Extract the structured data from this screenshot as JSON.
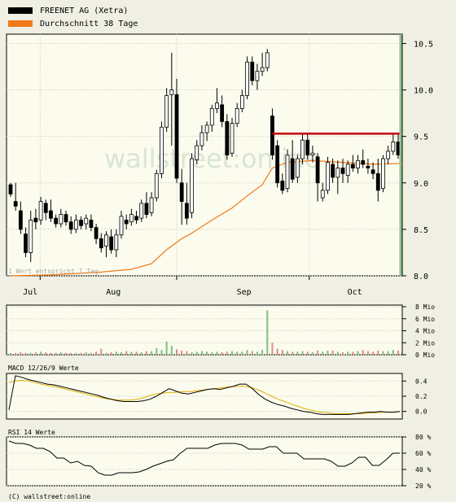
{
  "legend": [
    {
      "label": "FREENET AG (Xetra)",
      "color": "#000000"
    },
    {
      "label": "Durchschnitt 38 Tage",
      "color": "#f07a1a"
    }
  ],
  "watermark": "wallstreet:online",
  "note": "1 Wert entspricht 1 Tag.",
  "copyright": "(C) wallstreet:online",
  "panels": {
    "volume_ticks": [
      "8 Mio",
      "6 Mio",
      "4 Mio",
      "2 Mio",
      "0 Mio"
    ],
    "macd_title": "MACD 12/26/9 Werte",
    "macd_ticks": [
      "0.4",
      "0.2",
      "0.0"
    ],
    "rsi_title": "RSI 14 Werte",
    "rsi_ticks": [
      "80 %",
      "60 %",
      "40 %",
      "20 %"
    ]
  },
  "chart_data": [
    {
      "type": "candlestick",
      "title": "FREENET AG (Xetra)",
      "x_ticks": [
        "Jul",
        "Aug",
        "Sep",
        "Oct"
      ],
      "y_ticks": [
        "10.5",
        "10.0",
        "9.5",
        "9.0",
        "8.5",
        "8.0"
      ],
      "ylim": [
        8.0,
        10.6
      ],
      "grid": true,
      "legend_position": "top-left",
      "candles": [
        [
          8.98,
          9.0,
          8.88,
          8.85
        ],
        [
          8.8,
          9.0,
          8.75,
          8.7
        ],
        [
          8.7,
          8.8,
          8.5,
          8.45
        ],
        [
          8.45,
          8.52,
          8.25,
          8.2
        ],
        [
          8.25,
          8.7,
          8.6,
          8.15
        ],
        [
          8.62,
          8.72,
          8.58,
          8.5
        ],
        [
          8.6,
          8.85,
          8.8,
          8.55
        ],
        [
          8.78,
          8.82,
          8.68,
          8.6
        ],
        [
          8.7,
          8.82,
          8.62,
          8.58
        ],
        [
          8.62,
          8.66,
          8.56,
          8.52
        ],
        [
          8.56,
          8.72,
          8.66,
          8.52
        ],
        [
          8.66,
          8.7,
          8.58,
          8.54
        ],
        [
          8.58,
          8.64,
          8.5,
          8.45
        ],
        [
          8.5,
          8.66,
          8.6,
          8.46
        ],
        [
          8.6,
          8.64,
          8.54,
          8.5
        ],
        [
          8.56,
          8.66,
          8.62,
          8.5
        ],
        [
          8.6,
          8.66,
          8.52,
          8.48
        ],
        [
          8.52,
          8.56,
          8.4,
          8.34
        ],
        [
          8.4,
          8.46,
          8.3,
          8.25
        ],
        [
          8.32,
          8.48,
          8.44,
          8.2
        ],
        [
          8.42,
          8.5,
          8.28,
          8.24
        ],
        [
          8.28,
          8.5,
          8.44,
          8.2
        ],
        [
          8.44,
          8.7,
          8.64,
          8.4
        ],
        [
          8.6,
          8.66,
          8.56,
          8.5
        ],
        [
          8.58,
          8.72,
          8.66,
          8.54
        ],
        [
          8.64,
          8.7,
          8.6,
          8.56
        ],
        [
          8.62,
          8.82,
          8.78,
          8.58
        ],
        [
          8.78,
          8.9,
          8.66,
          8.62
        ],
        [
          8.68,
          8.9,
          8.84,
          8.64
        ],
        [
          8.84,
          9.14,
          9.1,
          8.8
        ],
        [
          9.1,
          9.66,
          9.6,
          9.05
        ],
        [
          9.6,
          10.02,
          9.94,
          9.55
        ],
        [
          9.95,
          10.4,
          10.0,
          9.4
        ],
        [
          9.95,
          10.12,
          9.05,
          9.0
        ],
        [
          9.0,
          9.15,
          8.8,
          8.55
        ],
        [
          8.78,
          9.0,
          8.62,
          8.55
        ],
        [
          8.68,
          9.32,
          9.26,
          8.62
        ],
        [
          9.25,
          9.46,
          9.4,
          9.2
        ],
        [
          9.4,
          9.62,
          9.54,
          9.35
        ],
        [
          9.54,
          9.66,
          9.62,
          9.45
        ],
        [
          9.62,
          9.84,
          9.8,
          9.55
        ],
        [
          9.8,
          10.02,
          9.86,
          9.75
        ],
        [
          9.84,
          9.94,
          9.66,
          9.6
        ],
        [
          9.66,
          9.74,
          9.3,
          9.25
        ],
        [
          9.32,
          9.7,
          9.64,
          9.28
        ],
        [
          9.64,
          9.86,
          9.8,
          9.6
        ],
        [
          9.8,
          10.0,
          9.94,
          9.76
        ],
        [
          9.94,
          10.36,
          10.3,
          9.9
        ],
        [
          10.3,
          10.36,
          10.1,
          10.05
        ],
        [
          10.1,
          10.28,
          10.2,
          10.0
        ],
        [
          10.2,
          10.4,
          10.24,
          10.15
        ],
        [
          10.24,
          10.44,
          10.4,
          10.2
        ],
        [
          9.72,
          9.8,
          9.3,
          9.25
        ],
        [
          9.4,
          9.46,
          9.0,
          8.95
        ],
        [
          9.02,
          9.1,
          8.92,
          8.88
        ],
        [
          8.94,
          9.36,
          9.3,
          8.9
        ],
        [
          9.26,
          9.46,
          9.04,
          9.0
        ],
        [
          9.06,
          9.3,
          9.26,
          9.0
        ],
        [
          9.26,
          9.54,
          9.46,
          9.2
        ],
        [
          9.46,
          9.54,
          9.3,
          9.25
        ],
        [
          9.3,
          9.4,
          9.32,
          9.22
        ],
        [
          9.28,
          9.32,
          9.0,
          8.8
        ],
        [
          8.84,
          9.0,
          8.92,
          8.8
        ],
        [
          8.92,
          9.28,
          9.22,
          8.88
        ],
        [
          9.2,
          9.26,
          9.06,
          9.0
        ],
        [
          9.06,
          9.24,
          9.16,
          8.88
        ],
        [
          9.16,
          9.26,
          9.1,
          9.0
        ],
        [
          9.08,
          9.24,
          9.2,
          9.0
        ],
        [
          9.2,
          9.3,
          9.16,
          9.12
        ],
        [
          9.16,
          9.3,
          9.24,
          9.1
        ],
        [
          9.24,
          9.36,
          9.2,
          9.16
        ],
        [
          9.18,
          9.26,
          9.16,
          9.1
        ],
        [
          9.14,
          9.22,
          9.1,
          9.04
        ],
        [
          9.1,
          9.26,
          8.92,
          8.8
        ],
        [
          8.94,
          9.3,
          9.26,
          8.9
        ],
        [
          9.26,
          9.4,
          9.34,
          9.2
        ],
        [
          9.34,
          9.54,
          9.44,
          9.3
        ],
        [
          9.44,
          9.54,
          9.3,
          9.26
        ]
      ],
      "sma38": [
        [
          0,
          8.0
        ],
        [
          8,
          8.01
        ],
        [
          18,
          8.04
        ],
        [
          24,
          8.07
        ],
        [
          28,
          8.13
        ],
        [
          31,
          8.28
        ],
        [
          34,
          8.4
        ],
        [
          36,
          8.46
        ],
        [
          40,
          8.6
        ],
        [
          44,
          8.73
        ],
        [
          47,
          8.86
        ],
        [
          50,
          8.98
        ],
        [
          52,
          9.16
        ],
        [
          55,
          9.22
        ],
        [
          60,
          9.24
        ],
        [
          66,
          9.22
        ],
        [
          72,
          9.2
        ],
        [
          78,
          9.21
        ]
      ],
      "resistance_line": 9.53
    },
    {
      "type": "bar",
      "title": "Volume",
      "ylim": [
        0,
        8
      ],
      "y_unit": "Mio",
      "values": [
        0.3,
        0.3,
        0.4,
        0.3,
        0.3,
        0.4,
        0.5,
        0.4,
        0.3,
        0.3,
        0.4,
        0.3,
        0.3,
        0.3,
        0.3,
        0.4,
        0.3,
        0.5,
        1.0,
        0.3,
        0.4,
        0.5,
        0.4,
        0.6,
        0.5,
        0.5,
        0.4,
        0.6,
        0.6,
        1.1,
        0.8,
        2.2,
        1.5,
        0.9,
        0.7,
        0.6,
        0.4,
        0.5,
        0.6,
        0.5,
        0.4,
        0.5,
        0.4,
        0.5,
        0.6,
        0.5,
        0.5,
        0.8,
        0.6,
        0.5,
        0.8,
        7.4,
        2.0,
        1.0,
        0.8,
        0.6,
        0.5,
        0.5,
        0.6,
        0.5,
        0.4,
        0.7,
        0.5,
        0.7,
        0.7,
        0.5,
        0.4,
        0.5,
        0.5,
        0.6,
        0.8,
        0.6,
        0.5,
        0.7,
        0.6,
        0.6,
        0.8,
        0.7
      ]
    },
    {
      "type": "line",
      "title": "MACD 12/26/9 Werte",
      "ylim": [
        -0.1,
        0.5
      ],
      "series": [
        {
          "name": "MACD",
          "color": "#000000",
          "values": [
            0.02,
            0.47,
            0.45,
            0.42,
            0.4,
            0.38,
            0.36,
            0.35,
            0.33,
            0.31,
            0.29,
            0.27,
            0.25,
            0.23,
            0.21,
            0.18,
            0.16,
            0.14,
            0.13,
            0.13,
            0.13,
            0.14,
            0.16,
            0.2,
            0.25,
            0.3,
            0.27,
            0.24,
            0.23,
            0.25,
            0.27,
            0.29,
            0.3,
            0.29,
            0.31,
            0.33,
            0.36,
            0.36,
            0.3,
            0.22,
            0.16,
            0.12,
            0.09,
            0.07,
            0.04,
            0.02,
            0.0,
            -0.01,
            -0.03,
            -0.04,
            -0.04,
            -0.04,
            -0.04,
            -0.04,
            -0.03,
            -0.02,
            -0.01,
            -0.01,
            0.0,
            -0.01,
            -0.01,
            0.0
          ]
        },
        {
          "name": "Signal",
          "color": "#e0b000",
          "values": [
            0.38,
            0.4,
            0.41,
            0.4,
            0.38,
            0.36,
            0.34,
            0.33,
            0.31,
            0.29,
            0.27,
            0.25,
            0.23,
            0.21,
            0.19,
            0.17,
            0.16,
            0.15,
            0.15,
            0.15,
            0.16,
            0.18,
            0.21,
            0.23,
            0.24,
            0.25,
            0.25,
            0.26,
            0.26,
            0.27,
            0.28,
            0.29,
            0.3,
            0.31,
            0.32,
            0.33,
            0.33,
            0.33,
            0.31,
            0.28,
            0.24,
            0.2,
            0.16,
            0.13,
            0.1,
            0.07,
            0.04,
            0.02,
            0.0,
            -0.01,
            -0.02,
            -0.03,
            -0.03,
            -0.03,
            -0.03,
            -0.03,
            -0.02,
            -0.02,
            -0.01,
            -0.01,
            -0.01,
            0.0
          ]
        }
      ]
    },
    {
      "type": "line",
      "title": "RSI 14 Werte",
      "ylim": [
        20,
        80
      ],
      "y_unit": "%",
      "series": [
        {
          "name": "RSI",
          "color": "#000000",
          "values": [
            75,
            72,
            72,
            70,
            66,
            66,
            62,
            54,
            54,
            48,
            50,
            45,
            44,
            36,
            33,
            33,
            36,
            36,
            36,
            37,
            40,
            44,
            47,
            50,
            52,
            60,
            66,
            66,
            66,
            66,
            70,
            72,
            72,
            72,
            70,
            65,
            65,
            65,
            68,
            68,
            60,
            60,
            60,
            53,
            53,
            53,
            53,
            50,
            44,
            44,
            48,
            55,
            55,
            45,
            45,
            52,
            60,
            60
          ]
        }
      ]
    }
  ]
}
